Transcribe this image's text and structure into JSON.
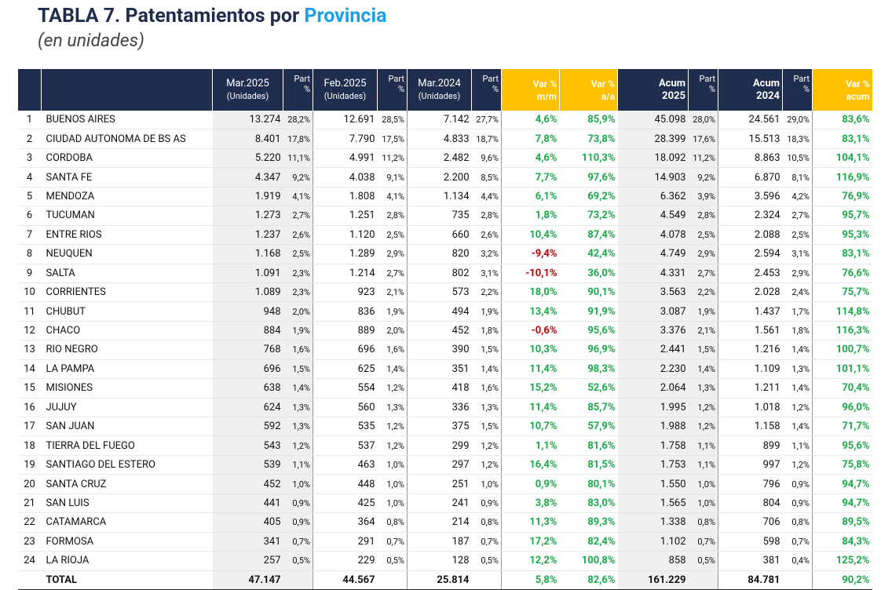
{
  "header": {
    "title": "TABLA 7. Patentamientos por",
    "title_highlight": "Provincia",
    "subtitle": "(en unidades)"
  },
  "table": {
    "columns": [
      {
        "lines": [
          "Mar.2025",
          "(Unidades)"
        ]
      },
      {
        "lines": [
          "Part",
          "%"
        ]
      },
      {
        "lines": [
          "Feb.2025",
          "(Unidades)"
        ]
      },
      {
        "lines": [
          "Part",
          "%"
        ]
      },
      {
        "lines": [
          "Mar.2024",
          "(Unidades)"
        ]
      },
      {
        "lines": [
          "Part",
          "%"
        ]
      },
      {
        "lines": [
          "Var %",
          "m/m"
        ]
      },
      {
        "lines": [
          "Var %",
          "a/a"
        ]
      },
      {
        "lines": [
          "Acum",
          "2025"
        ]
      },
      {
        "lines": [
          "Part",
          "%"
        ]
      },
      {
        "lines": [
          "Acum",
          "2024"
        ]
      },
      {
        "lines": [
          "Part",
          "%"
        ]
      },
      {
        "lines": [
          "Var %",
          "acum"
        ]
      }
    ],
    "rows": [
      [
        "1",
        "BUENOS AIRES",
        "13.274",
        "28,2%",
        "12.691",
        "28,5%",
        "7.142",
        "27,7%",
        "4,6%",
        "85,9%",
        "45.098",
        "28,0%",
        "24.561",
        "29,0%",
        "83,6%"
      ],
      [
        "2",
        "CIUDAD AUTONOMA DE BS AS",
        "8.401",
        "17,8%",
        "7.790",
        "17,5%",
        "4.833",
        "18,7%",
        "7,8%",
        "73,8%",
        "28.399",
        "17,6%",
        "15.513",
        "18,3%",
        "83,1%"
      ],
      [
        "3",
        "CORDOBA",
        "5.220",
        "11,1%",
        "4.991",
        "11,2%",
        "2.482",
        "9,6%",
        "4,6%",
        "110,3%",
        "18.092",
        "11,2%",
        "8.863",
        "10,5%",
        "104,1%"
      ],
      [
        "4",
        "SANTA FE",
        "4.347",
        "9,2%",
        "4.038",
        "9,1%",
        "2.200",
        "8,5%",
        "7,7%",
        "97,6%",
        "14.903",
        "9,2%",
        "6.870",
        "8,1%",
        "116,9%"
      ],
      [
        "5",
        "MENDOZA",
        "1.919",
        "4,1%",
        "1.808",
        "4,1%",
        "1.134",
        "4,4%",
        "6,1%",
        "69,2%",
        "6.362",
        "3,9%",
        "3.596",
        "4,2%",
        "76,9%"
      ],
      [
        "6",
        "TUCUMAN",
        "1.273",
        "2,7%",
        "1.251",
        "2,8%",
        "735",
        "2,8%",
        "1,8%",
        "73,2%",
        "4.549",
        "2,8%",
        "2.324",
        "2,7%",
        "95,7%"
      ],
      [
        "7",
        "ENTRE RIOS",
        "1.237",
        "2,6%",
        "1.120",
        "2,5%",
        "660",
        "2,6%",
        "10,4%",
        "87,4%",
        "4.078",
        "2,5%",
        "2.088",
        "2,5%",
        "95,3%"
      ],
      [
        "8",
        "NEUQUEN",
        "1.168",
        "2,5%",
        "1.289",
        "2,9%",
        "820",
        "3,2%",
        "-9,4%",
        "42,4%",
        "4.749",
        "2,9%",
        "2.594",
        "3,1%",
        "83,1%"
      ],
      [
        "9",
        "SALTA",
        "1.091",
        "2,3%",
        "1.214",
        "2,7%",
        "802",
        "3,1%",
        "-10,1%",
        "36,0%",
        "4.331",
        "2,7%",
        "2.453",
        "2,9%",
        "76,6%"
      ],
      [
        "10",
        "CORRIENTES",
        "1.089",
        "2,3%",
        "923",
        "2,1%",
        "573",
        "2,2%",
        "18,0%",
        "90,1%",
        "3.563",
        "2,2%",
        "2.028",
        "2,4%",
        "75,7%"
      ],
      [
        "11",
        "CHUBUT",
        "948",
        "2,0%",
        "836",
        "1,9%",
        "494",
        "1,9%",
        "13,4%",
        "91,9%",
        "3.087",
        "1,9%",
        "1.437",
        "1,7%",
        "114,8%"
      ],
      [
        "12",
        "CHACO",
        "884",
        "1,9%",
        "889",
        "2,0%",
        "452",
        "1,8%",
        "-0,6%",
        "95,6%",
        "3.376",
        "2,1%",
        "1.561",
        "1,8%",
        "116,3%"
      ],
      [
        "13",
        "RIO NEGRO",
        "768",
        "1,6%",
        "696",
        "1,6%",
        "390",
        "1,5%",
        "10,3%",
        "96,9%",
        "2.441",
        "1,5%",
        "1.216",
        "1,4%",
        "100,7%"
      ],
      [
        "14",
        "LA PAMPA",
        "696",
        "1,5%",
        "625",
        "1,4%",
        "351",
        "1,4%",
        "11,4%",
        "98,3%",
        "2.230",
        "1,4%",
        "1.109",
        "1,3%",
        "101,1%"
      ],
      [
        "15",
        "MISIONES",
        "638",
        "1,4%",
        "554",
        "1,2%",
        "418",
        "1,6%",
        "15,2%",
        "52,6%",
        "2.064",
        "1,3%",
        "1.211",
        "1,4%",
        "70,4%"
      ],
      [
        "16",
        "JUJUY",
        "624",
        "1,3%",
        "560",
        "1,3%",
        "336",
        "1,3%",
        "11,4%",
        "85,7%",
        "1.995",
        "1,2%",
        "1.018",
        "1,2%",
        "96,0%"
      ],
      [
        "17",
        "SAN JUAN",
        "592",
        "1,3%",
        "535",
        "1,2%",
        "375",
        "1,5%",
        "10,7%",
        "57,9%",
        "1.988",
        "1,2%",
        "1.158",
        "1,4%",
        "71,7%"
      ],
      [
        "18",
        "TIERRA DEL FUEGO",
        "543",
        "1,2%",
        "537",
        "1,2%",
        "299",
        "1,2%",
        "1,1%",
        "81,6%",
        "1.758",
        "1,1%",
        "899",
        "1,1%",
        "95,6%"
      ],
      [
        "19",
        "SANTIAGO DEL ESTERO",
        "539",
        "1,1%",
        "463",
        "1,0%",
        "297",
        "1,2%",
        "16,4%",
        "81,5%",
        "1.753",
        "1,1%",
        "997",
        "1,2%",
        "75,8%"
      ],
      [
        "20",
        "SANTA CRUZ",
        "452",
        "1,0%",
        "448",
        "1,0%",
        "251",
        "1,0%",
        "0,9%",
        "80,1%",
        "1.550",
        "1,0%",
        "796",
        "0,9%",
        "94,7%"
      ],
      [
        "21",
        "SAN LUIS",
        "441",
        "0,9%",
        "425",
        "1,0%",
        "241",
        "0,9%",
        "3,8%",
        "83,0%",
        "1.565",
        "1,0%",
        "804",
        "0,9%",
        "94,7%"
      ],
      [
        "22",
        "CATAMARCA",
        "405",
        "0,9%",
        "364",
        "0,8%",
        "214",
        "0,8%",
        "11,3%",
        "89,3%",
        "1.338",
        "0,8%",
        "706",
        "0,8%",
        "89,5%"
      ],
      [
        "23",
        "FORMOSA",
        "341",
        "0,7%",
        "291",
        "0,7%",
        "187",
        "0,7%",
        "17,2%",
        "82,4%",
        "1.102",
        "0,7%",
        "598",
        "0,7%",
        "84,3%"
      ],
      [
        "24",
        "LA RIOJA",
        "257",
        "0,5%",
        "229",
        "0,5%",
        "128",
        "0,5%",
        "12,2%",
        "100,8%",
        "858",
        "0,5%",
        "381",
        "0,4%",
        "125,2%"
      ]
    ],
    "total": {
      "label": "TOTAL",
      "mar2025": "47.147",
      "feb2025": "44.567",
      "mar2024": "25.814",
      "var_mm": "5,8%",
      "var_aa": "82,6%",
      "acum2025": "161.229",
      "acum2024": "84.781",
      "var_acum": "90,2%"
    }
  }
}
